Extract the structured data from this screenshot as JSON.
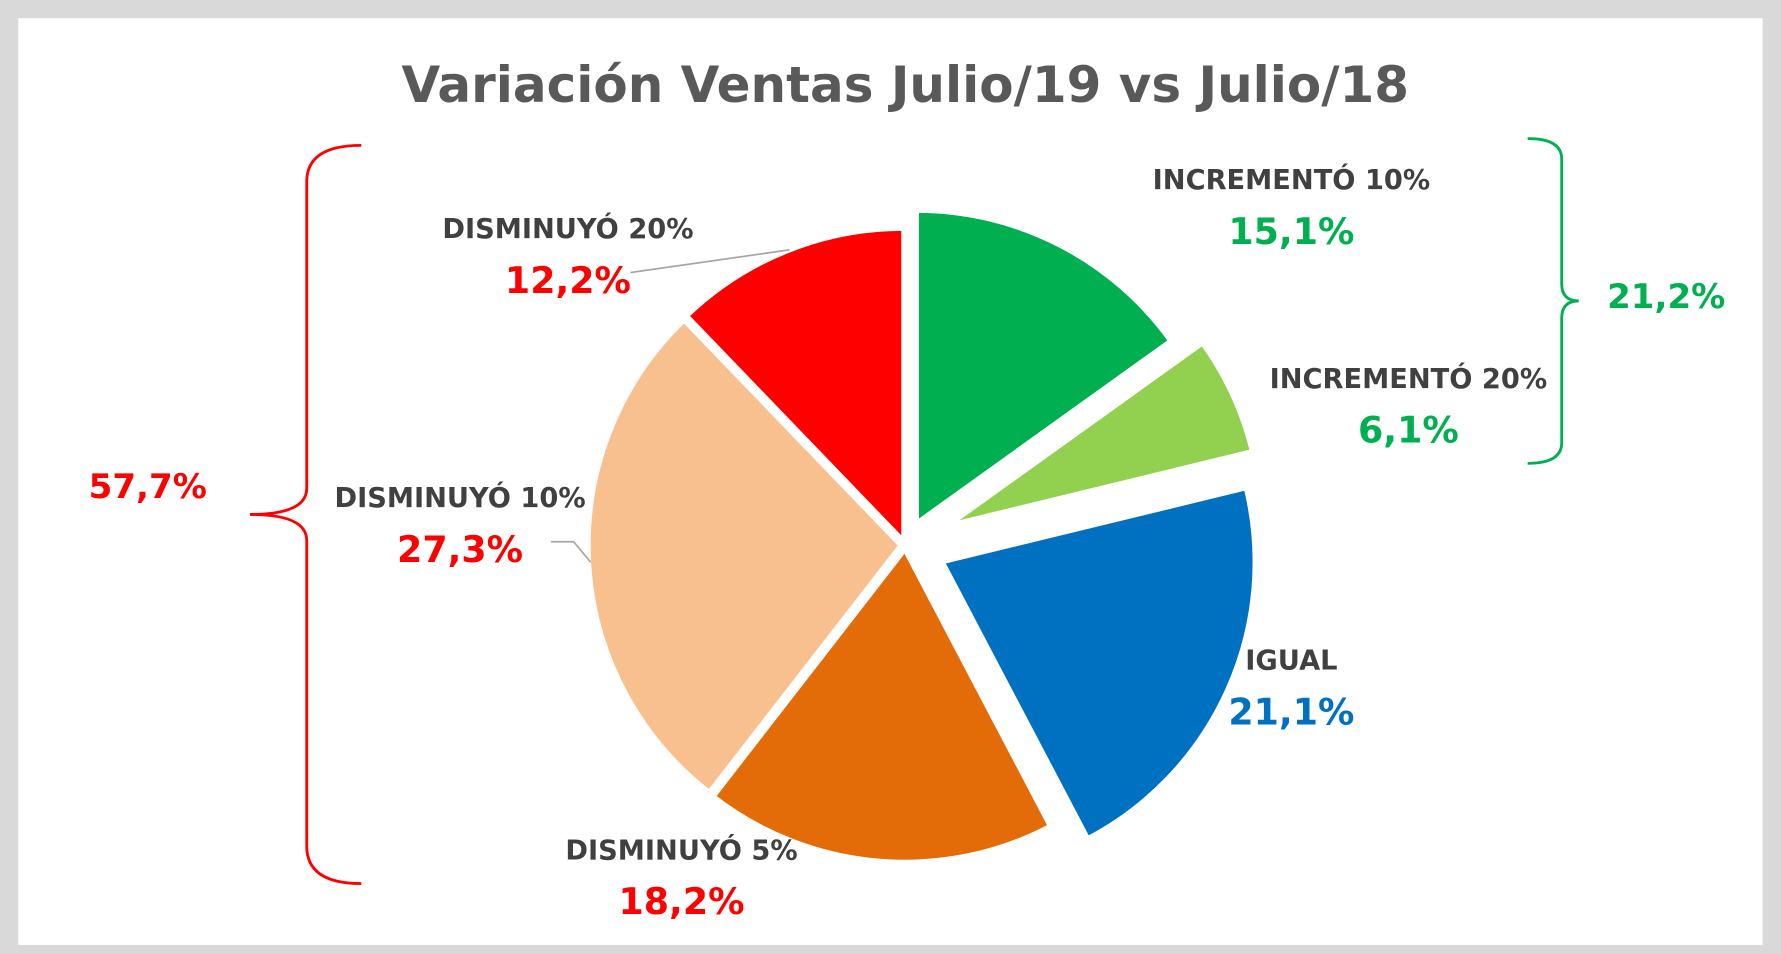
{
  "chart_data": {
    "type": "pie",
    "title": "Variación Ventas Julio/19 vs Julio/18",
    "categories": [
      "INCREMENTÓ 10%",
      "INCREMENTÓ 20%",
      "IGUAL",
      "DISMINUYÓ 5%",
      "DISMINUYÓ 10%",
      "DISMINUYÓ 20%"
    ],
    "values": [
      15.1,
      6.1,
      21.1,
      18.2,
      27.3,
      12.2
    ],
    "value_labels": [
      "15,1%",
      "6,1%",
      "21,1%",
      "18,2%",
      "27,3%",
      "12,2%"
    ],
    "colors": [
      "#00b050",
      "#92d050",
      "#0070c0",
      "#e36c09",
      "#f9c08f",
      "#ff0000"
    ],
    "label_colors": [
      "#00b050",
      "#00b050",
      "#0070c0",
      "#ff0000",
      "#ff0000",
      "#ff0000"
    ],
    "annotations": [
      {
        "value": 21.2,
        "label": "21,2%",
        "color": "#00b050"
      },
      {
        "value": 57.7,
        "label": "57,7%",
        "color": "#ff0000"
      }
    ]
  }
}
